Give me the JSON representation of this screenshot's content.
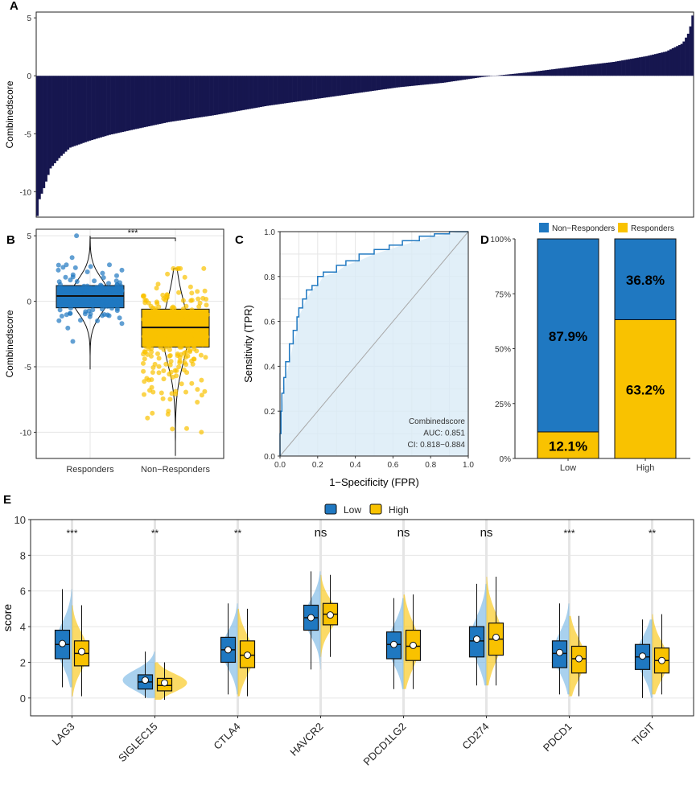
{
  "colors": {
    "navy": "#16164f",
    "blue": "#1f78c1",
    "yellow": "#f9c200",
    "lightblue": "#6fb3e2",
    "roc_fill": "#daebf6",
    "roc_line": "#1f78c1",
    "grid": "#e5e5e5",
    "diag": "#a8a8a8"
  },
  "chart_data": [
    {
      "panel": "A",
      "type": "bar",
      "title": "",
      "ylabel": "Combinedscore",
      "xlabel": "",
      "ylim": [
        -12.2,
        5.5
      ],
      "yticks": [
        -10,
        -5,
        0,
        5
      ],
      "n_bars": 300,
      "sorted_scores_ascending": [
        [
          0.0,
          -12.1
        ],
        [
          0.003,
          -10.7
        ],
        [
          0.01,
          -9.7
        ],
        [
          0.02,
          -8.0
        ],
        [
          0.035,
          -7.0
        ],
        [
          0.05,
          -6.2
        ],
        [
          0.08,
          -5.6
        ],
        [
          0.11,
          -5.1
        ],
        [
          0.15,
          -4.6
        ],
        [
          0.2,
          -4.0
        ],
        [
          0.27,
          -3.4
        ],
        [
          0.35,
          -2.6
        ],
        [
          0.45,
          -1.8
        ],
        [
          0.55,
          -1.0
        ],
        [
          0.62,
          -0.6
        ],
        [
          0.68,
          -0.1
        ],
        [
          0.75,
          0.3
        ],
        [
          0.82,
          0.8
        ],
        [
          0.88,
          1.2
        ],
        [
          0.93,
          1.7
        ],
        [
          0.96,
          2.1
        ],
        [
          0.985,
          2.8
        ],
        [
          0.995,
          3.8
        ],
        [
          1.0,
          5.2
        ]
      ]
    },
    {
      "panel": "B",
      "type": "violin-box-jitter",
      "ylabel": "Combinedscore",
      "categories": [
        "Responders",
        "Non−Responders"
      ],
      "ylim": [
        -12,
        5.5
      ],
      "yticks": [
        -10,
        -5,
        0,
        5
      ],
      "significance": "***",
      "groups": [
        {
          "name": "Responders",
          "color": "#1f78c1",
          "n": 110,
          "min": -5.2,
          "q1": -0.5,
          "median": 0.4,
          "q3": 1.2,
          "max": 5.0,
          "mean": 0.4,
          "sd": 1.3
        },
        {
          "name": "Non−Responders",
          "color": "#f9c200",
          "n": 230,
          "min": -11.8,
          "q1": -3.5,
          "median": -2.0,
          "q3": -0.6,
          "max": 2.5,
          "mean": -2.3,
          "sd": 2.4
        }
      ]
    },
    {
      "panel": "C",
      "type": "line",
      "xlabel": "1−Specificity (FPR)",
      "ylabel": "Sensitivity (TPR)",
      "xlim": [
        0,
        1
      ],
      "ylim": [
        0,
        1
      ],
      "ticks": [
        "0.0",
        "0.2",
        "0.4",
        "0.6",
        "0.8",
        "1.0"
      ],
      "roc": [
        [
          0.0,
          0.0
        ],
        [
          0.005,
          0.1
        ],
        [
          0.01,
          0.2
        ],
        [
          0.02,
          0.28
        ],
        [
          0.03,
          0.35
        ],
        [
          0.05,
          0.42
        ],
        [
          0.07,
          0.5
        ],
        [
          0.09,
          0.56
        ],
        [
          0.1,
          0.62
        ],
        [
          0.12,
          0.66
        ],
        [
          0.14,
          0.7
        ],
        [
          0.17,
          0.74
        ],
        [
          0.2,
          0.76
        ],
        [
          0.23,
          0.8
        ],
        [
          0.3,
          0.82
        ],
        [
          0.35,
          0.85
        ],
        [
          0.42,
          0.87
        ],
        [
          0.5,
          0.9
        ],
        [
          0.58,
          0.92
        ],
        [
          0.65,
          0.94
        ],
        [
          0.74,
          0.96
        ],
        [
          0.82,
          0.98
        ],
        [
          0.9,
          0.99
        ],
        [
          0.95,
          1.0
        ],
        [
          1.0,
          1.0
        ]
      ],
      "annotation": [
        "Combinedscore",
        "AUC: 0.851",
        "CI: 0.818−0.884"
      ]
    },
    {
      "panel": "D",
      "type": "bar",
      "stacked": true,
      "percent": true,
      "categories": [
        "Low",
        "High"
      ],
      "yticks": [
        "0%",
        "25%",
        "50%",
        "75%",
        "100%"
      ],
      "legend": [
        {
          "label": "Non−Responders",
          "color": "#1f78c1"
        },
        {
          "label": "Responders",
          "color": "#f9c200"
        }
      ],
      "series": [
        {
          "name": "Responders",
          "values": [
            12.1,
            63.2
          ],
          "labels": [
            "12.1%",
            "63.2%"
          ]
        },
        {
          "name": "Non−Responders",
          "values": [
            87.9,
            36.8
          ],
          "labels": [
            "87.9%",
            "36.8%"
          ]
        }
      ]
    },
    {
      "panel": "E",
      "type": "split-violin-box",
      "ylabel": "score",
      "ylim": [
        -1,
        10
      ],
      "yticks": [
        0,
        2,
        4,
        6,
        8,
        10
      ],
      "legend": [
        {
          "label": "Low",
          "color": "#1f78c1"
        },
        {
          "label": "High",
          "color": "#f9c200"
        }
      ],
      "genes": [
        "LAG3",
        "SIGLEC15",
        "CTLA4",
        "HAVCR2",
        "PDCD1LG2",
        "CD274",
        "PDCD1",
        "TIGIT"
      ],
      "significance": [
        "***",
        "**",
        "**",
        "ns",
        "ns",
        "ns",
        "***",
        "**"
      ],
      "low": [
        {
          "min": 0.6,
          "q1": 2.2,
          "med": 3.0,
          "q3": 3.8,
          "max": 6.1,
          "mean": 3.05
        },
        {
          "min": 0.0,
          "q1": 0.5,
          "med": 0.9,
          "q3": 1.3,
          "max": 2.6,
          "mean": 1.0
        },
        {
          "min": 0.2,
          "q1": 2.0,
          "med": 2.7,
          "q3": 3.4,
          "max": 5.3,
          "mean": 2.7
        },
        {
          "min": 1.6,
          "q1": 3.8,
          "med": 4.5,
          "q3": 5.2,
          "max": 7.1,
          "mean": 4.5
        },
        {
          "min": 0.5,
          "q1": 2.2,
          "med": 3.0,
          "q3": 3.7,
          "max": 5.6,
          "mean": 3.0
        },
        {
          "min": 0.7,
          "q1": 2.3,
          "med": 3.2,
          "q3": 4.0,
          "max": 6.4,
          "mean": 3.3
        },
        {
          "min": 0.2,
          "q1": 1.7,
          "med": 2.5,
          "q3": 3.2,
          "max": 5.3,
          "mean": 2.55
        },
        {
          "min": 0.0,
          "q1": 1.6,
          "med": 2.3,
          "q3": 3.0,
          "max": 4.4,
          "mean": 2.35
        }
      ],
      "high": [
        {
          "min": 0.1,
          "q1": 1.8,
          "med": 2.5,
          "q3": 3.2,
          "max": 5.2,
          "mean": 2.6
        },
        {
          "min": -0.1,
          "q1": 0.4,
          "med": 0.7,
          "q3": 1.1,
          "max": 2.0,
          "mean": 0.85
        },
        {
          "min": 0.1,
          "q1": 1.7,
          "med": 2.4,
          "q3": 3.2,
          "max": 5.0,
          "mean": 2.4
        },
        {
          "min": 2.3,
          "q1": 4.1,
          "med": 4.7,
          "q3": 5.3,
          "max": 6.9,
          "mean": 4.65
        },
        {
          "min": 0.5,
          "q1": 2.1,
          "med": 2.9,
          "q3": 3.8,
          "max": 5.8,
          "mean": 2.95
        },
        {
          "min": 0.7,
          "q1": 2.4,
          "med": 3.3,
          "q3": 4.2,
          "max": 6.8,
          "mean": 3.4
        },
        {
          "min": 0.1,
          "q1": 1.4,
          "med": 2.2,
          "q3": 2.9,
          "max": 4.6,
          "mean": 2.2
        },
        {
          "min": 0.2,
          "q1": 1.4,
          "med": 2.1,
          "q3": 2.8,
          "max": 4.7,
          "mean": 2.1
        }
      ]
    }
  ]
}
